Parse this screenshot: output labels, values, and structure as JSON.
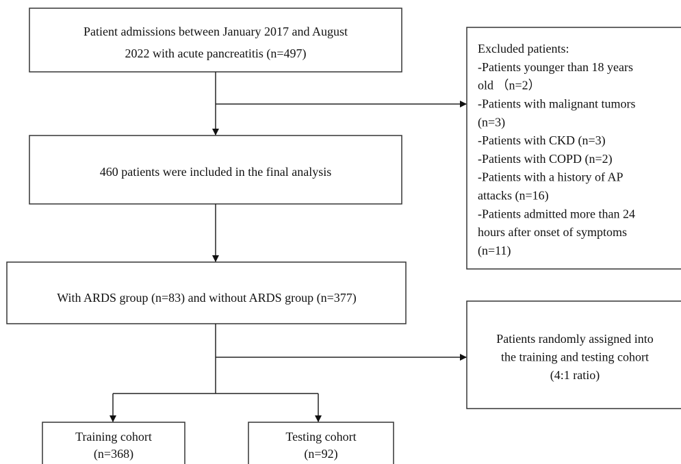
{
  "nodes": [
    {
      "lines": [
        "Patient admissions between January 2017 and August",
        "2022 with acute pancreatitis (n=497)"
      ]
    },
    {
      "lines": [
        "460 patients were included in the final analysis"
      ]
    },
    {
      "lines": [
        "With ARDS group (n=83) and without ARDS group (n=377)"
      ]
    },
    {
      "lines": [
        "Excluded patients:",
        "-Patients younger than 18 years",
        "old （n=2）",
        "-Patients with malignant tumors",
        "(n=3)",
        "-Patients with CKD (n=3)",
        "-Patients with COPD (n=2)",
        "-Patients with a history of AP",
        "attacks (n=16)",
        "-Patients admitted more than 24",
        "hours after onset of symptoms",
        "(n=11)"
      ]
    },
    {
      "lines": [
        "Patients randomly assigned into",
        "the training and testing cohort",
        "(4:1 ratio)"
      ]
    },
    {
      "lines": [
        "Training cohort",
        "(n=368)"
      ]
    },
    {
      "lines": [
        "Testing cohort",
        "(n=92)"
      ]
    }
  ]
}
